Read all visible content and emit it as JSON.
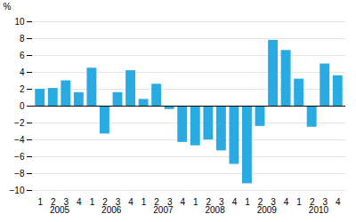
{
  "chart_data": {
    "type": "bar",
    "categories": [
      "1",
      "2",
      "3",
      "4",
      "1",
      "2",
      "3",
      "4",
      "1",
      "2",
      "3",
      "4",
      "1",
      "2",
      "3",
      "4",
      "1",
      "2",
      "3",
      "4",
      "1",
      "2",
      "3",
      "4"
    ],
    "values": [
      2.0,
      2.1,
      3.0,
      1.6,
      4.5,
      -3.3,
      1.6,
      4.2,
      0.8,
      2.6,
      -0.4,
      -4.3,
      -4.7,
      -4.0,
      -5.3,
      -6.9,
      -9.2,
      -2.4,
      7.8,
      6.6,
      3.2,
      -2.5,
      5.0,
      3.6
    ],
    "color": "#29ABE2",
    "ylabel": "%",
    "ylim": [
      -10,
      10
    ],
    "yticks": [
      -10,
      -8,
      -6,
      -4,
      -2,
      0,
      2,
      4,
      6,
      8,
      10
    ],
    "grid": true,
    "annotations": [
      {
        "text": "2005",
        "x": 1.5
      },
      {
        "text": "2006",
        "x": 5.5
      },
      {
        "text": "2007",
        "x": 9.5
      },
      {
        "text": "2008",
        "x": 13.5
      },
      {
        "text": "2009",
        "x": 17.5
      },
      {
        "text": "2010",
        "x": 21.5
      }
    ]
  }
}
